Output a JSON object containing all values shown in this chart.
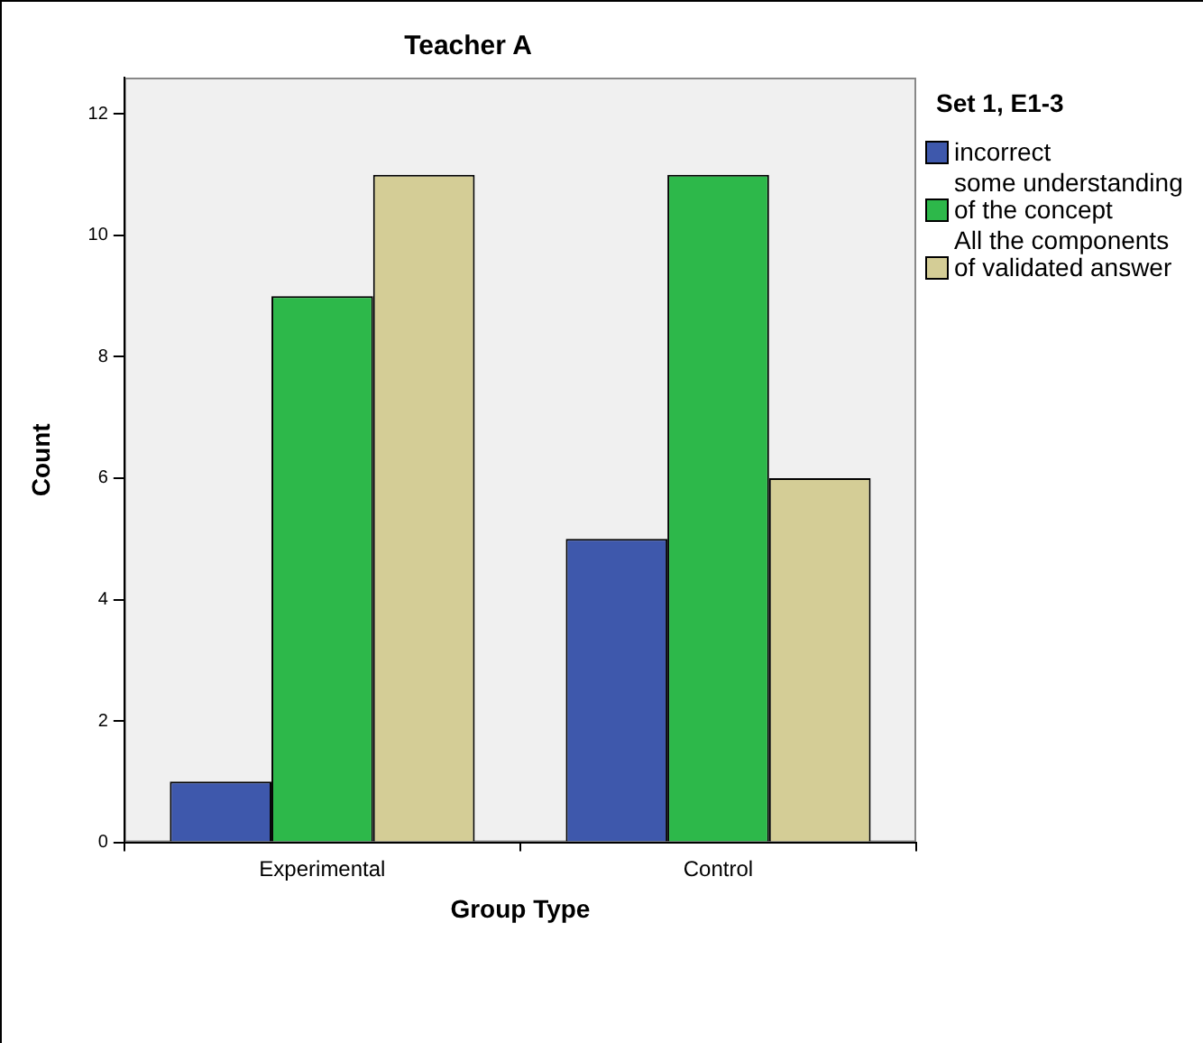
{
  "chart_data": {
    "type": "bar",
    "title": "Teacher A",
    "xlabel": "Group Type",
    "ylabel": "Count",
    "legend_title": "Set 1, E1-3",
    "legend": "right",
    "grid": false,
    "categories": [
      "Experimental",
      "Control"
    ],
    "series": [
      {
        "name": "incorrect",
        "color": "#3e58ac",
        "values": [
          1,
          5
        ]
      },
      {
        "name": "some understanding of the concept",
        "color": "#2db84a",
        "values": [
          9,
          11
        ]
      },
      {
        "name": "All the components of validated answer",
        "color": "#d4cd96",
        "values": [
          11,
          6
        ]
      }
    ],
    "ylim": [
      0,
      12.6
    ],
    "yticks": [
      0,
      2,
      4,
      6,
      8,
      10,
      12
    ]
  }
}
